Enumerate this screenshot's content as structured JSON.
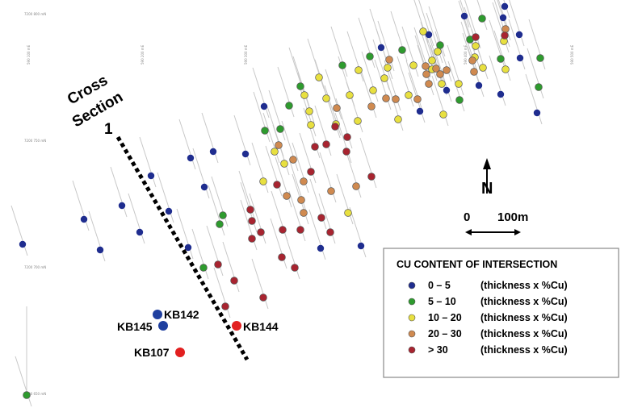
{
  "map": {
    "section_label": [
      "Cross",
      "Section",
      "1"
    ],
    "north_label": "N",
    "scale_start": "0",
    "scale_end": "100m",
    "grid_labels": [
      "7200 800 mN",
      "7200 750 mN",
      "7200 700 mN",
      "7200 650 mN"
    ],
    "easting_labels": [
      "590 100 mE",
      "590 200 mE",
      "590 300 mE",
      "590 400 mE",
      "590 500 mE"
    ]
  },
  "legend": {
    "title": "CU CONTENT OF INTERSECTION",
    "items": [
      {
        "range": "0 – 5",
        "desc": "(thickness x %Cu)",
        "color": "#1f2d8f"
      },
      {
        "range": "5 – 10",
        "desc": "(thickness x %Cu)",
        "color": "#2e9b2e"
      },
      {
        "range": "10 – 20",
        "desc": "(thickness x %Cu)",
        "color": "#e8e040"
      },
      {
        "range": "20 – 30",
        "desc": "(thickness x %Cu)",
        "color": "#d08a50"
      },
      {
        "range": "> 30",
        "desc": "(thickness x %Cu)",
        "color": "#a82430"
      }
    ]
  },
  "holes": [
    {
      "name": "KB142",
      "color": "#1f3f9f"
    },
    {
      "name": "KB145",
      "color": "#1f3f9f"
    },
    {
      "name": "KB144",
      "color": "#e22020"
    },
    {
      "name": "KB107",
      "color": "#e22020"
    }
  ]
}
